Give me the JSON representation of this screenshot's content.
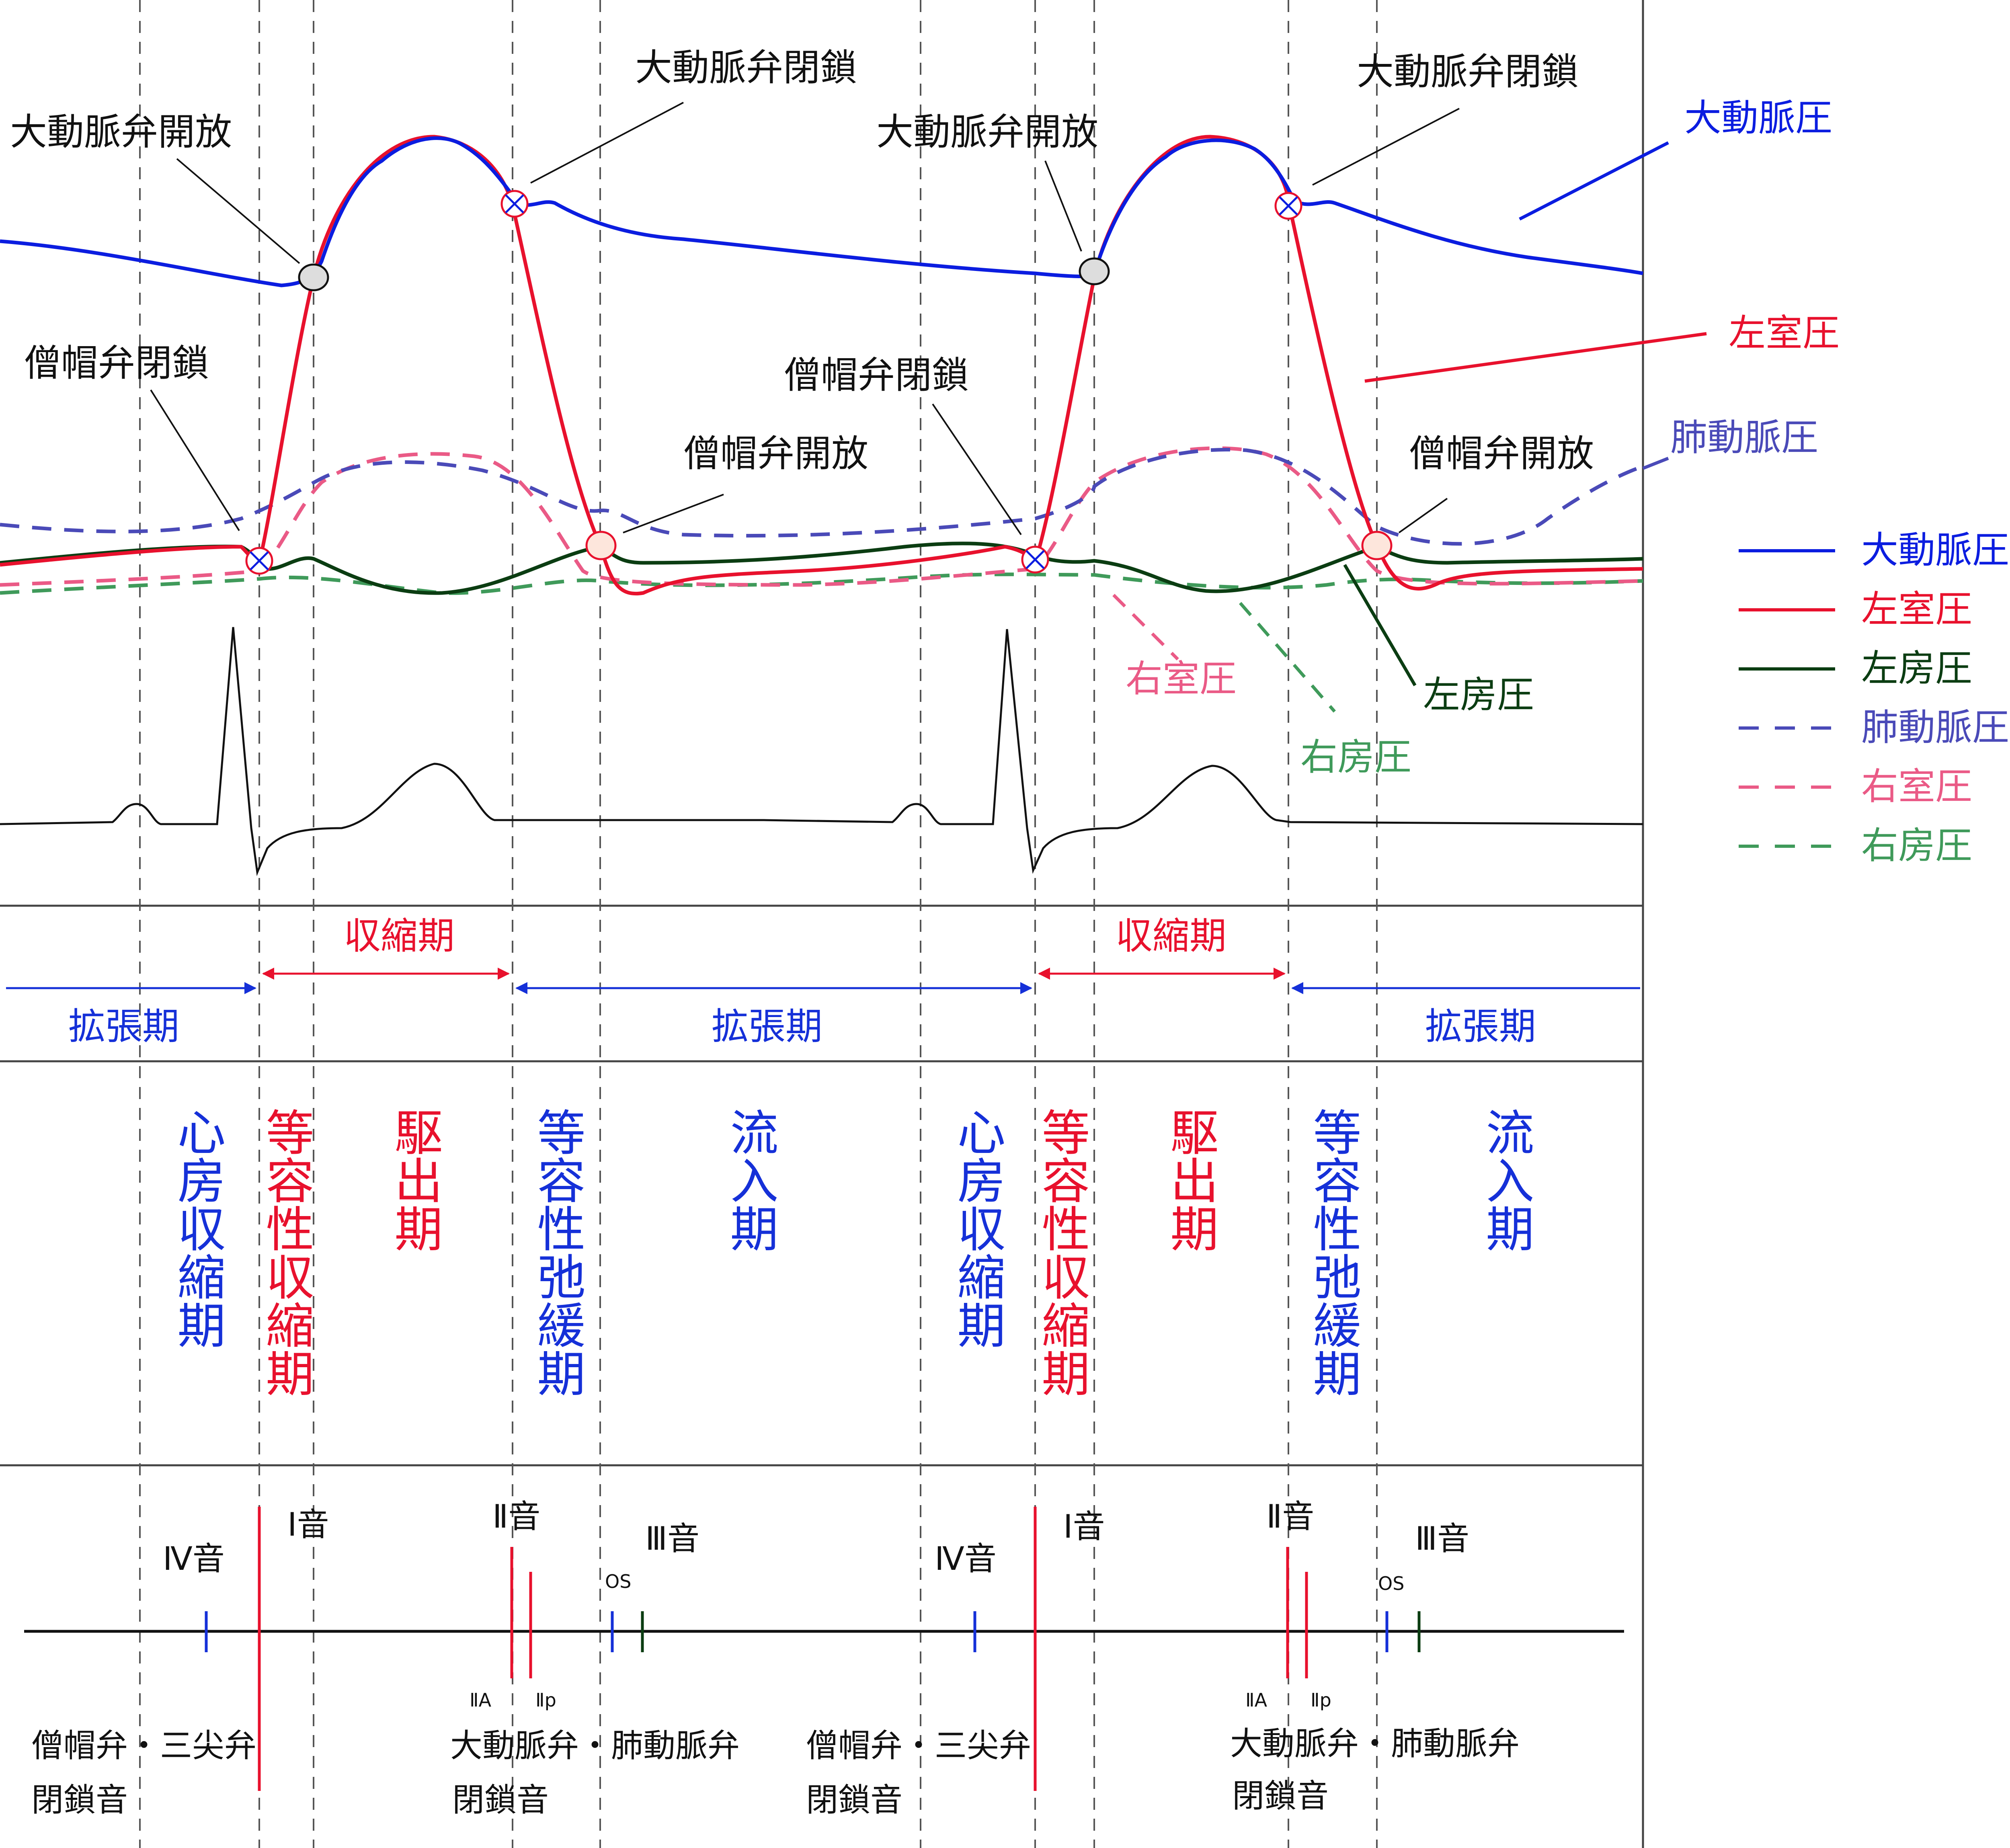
{
  "colors": {
    "aortic": "#0b1de0",
    "lv": "#e8112d",
    "la": "#0b3d12",
    "pulmonary": "#4a4ab8",
    "rv": "#ea5a86",
    "ra": "#3f9a5a",
    "blue_text": "#1530d8",
    "red_text": "#e8112d",
    "ecg": "#111111"
  },
  "curve_labels": {
    "aortic": "大動脈圧",
    "lv": "左室圧",
    "pulmonary": "肺動脈圧",
    "rv": "右室圧",
    "la": "左房圧",
    "ra": "右房圧"
  },
  "legend": [
    {
      "label": "大動脈圧",
      "color_key": "aortic",
      "style": "solid"
    },
    {
      "label": "左室圧",
      "color_key": "lv",
      "style": "solid"
    },
    {
      "label": "左房圧",
      "color_key": "la",
      "style": "solid"
    },
    {
      "label": "肺動脈圧",
      "color_key": "pulmonary",
      "style": "dashed"
    },
    {
      "label": "右室圧",
      "color_key": "rv",
      "style": "dashed"
    },
    {
      "label": "右房圧",
      "color_key": "ra",
      "style": "dashed"
    }
  ],
  "valve_labels": {
    "aortic_open": "大動脈弁開放",
    "aortic_close": "大動脈弁閉鎖",
    "mitral_close": "僧帽弁閉鎖",
    "mitral_open": "僧帽弁開放"
  },
  "periods": {
    "systole": "収縮期",
    "diastole": "拡張期"
  },
  "phases": [
    {
      "text": "心房収縮期",
      "color_key": "blue_text"
    },
    {
      "text": "等容性収縮期",
      "color_key": "red_text"
    },
    {
      "text": "駆出期",
      "color_key": "red_text"
    },
    {
      "text": "等容性弛緩期",
      "color_key": "blue_text"
    },
    {
      "text": "流入期",
      "color_key": "blue_text"
    }
  ],
  "heart_sounds": {
    "s4": "Ⅳ音",
    "s1": "Ⅰ音",
    "s2": "Ⅱ音",
    "s3": "Ⅲ音",
    "os": "OS",
    "s2a": "ⅡA",
    "s2p": "Ⅱp",
    "mitral_tricuspid_line1": "僧帽弁・三尖弁",
    "aortic_pulmonary_line1": "大動脈弁・肺動脈弁",
    "closure_line2": "閉鎖音"
  }
}
